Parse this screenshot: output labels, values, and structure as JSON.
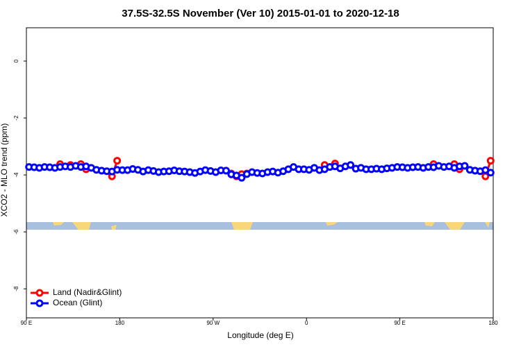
{
  "chart_data": {
    "type": "line",
    "title": "37.5S-32.5S November (Ver 10)   2015-01-01 to 2020-12-18",
    "x_label": "Longitude (deg E)",
    "y_label": "XCO2 - MLO trend (ppm)",
    "x": [
      92.5,
      97.5,
      102.5,
      107.5,
      112.5,
      117.5,
      122.5,
      127.5,
      132.5,
      137.5,
      142.5,
      147.5,
      152.5,
      157.5,
      162.5,
      167.5,
      172.5,
      177.5,
      182.5,
      187.5,
      192.5,
      197.5,
      202.5,
      207.5,
      212.5,
      217.5,
      222.5,
      227.5,
      232.5,
      237.5,
      242.5,
      247.5,
      252.5,
      257.5,
      262.5,
      267.5,
      272.5,
      277.5,
      282.5,
      287.5,
      292.5,
      297.5,
      302.5,
      307.5,
      312.5,
      317.5,
      322.5,
      327.5,
      332.5,
      337.5,
      342.5,
      347.5,
      352.5,
      357.5,
      362.5,
      367.5,
      372.5,
      377.5,
      382.5,
      387.5,
      392.5,
      397.5,
      402.5,
      407.5,
      412.5,
      417.5,
      422.5,
      427.5,
      432.5,
      437.5,
      442.5,
      447.5,
      452.5,
      457.5,
      462.5,
      467.5,
      472.5,
      477.5,
      482.5,
      487.5,
      492.5,
      497.5,
      502.5,
      507.5,
      512.5,
      517.5,
      522.5,
      527.5,
      532.5,
      537.5
    ],
    "xlim": [
      90,
      540
    ],
    "xticks": [
      {
        "value": 90,
        "label": "90 E"
      },
      180,
      {
        "value": 270,
        "label": "90 W"
      },
      {
        "value": 360,
        "label": "0"
      },
      {
        "value": 450,
        "label": "90 E"
      },
      {
        "value": 540,
        "label": "180"
      }
    ],
    "ylim": [
      -9.02,
      1.17
    ],
    "yticks": [
      0,
      -2,
      -4,
      -6,
      -8
    ],
    "legend": "bottom-left",
    "series": [
      {
        "name": "Land (Nadir&Glint)",
        "color": "#ff0000",
        "values": [
          null,
          null,
          null,
          null,
          null,
          null,
          -3.62,
          null,
          -3.65,
          null,
          -3.62,
          -3.8,
          null,
          null,
          null,
          null,
          -4.05,
          -3.5,
          null,
          null,
          null,
          null,
          null,
          null,
          null,
          null,
          null,
          null,
          null,
          null,
          null,
          null,
          null,
          null,
          null,
          null,
          null,
          null,
          null,
          -3.95,
          -4.05,
          -3.97,
          -3.95,
          null,
          null,
          null,
          null,
          null,
          null,
          null,
          null,
          null,
          null,
          null,
          null,
          null,
          null,
          -3.65,
          null,
          -3.6,
          null,
          null,
          null,
          null,
          null,
          null,
          null,
          null,
          null,
          null,
          null,
          null,
          null,
          null,
          null,
          null,
          null,
          null,
          -3.62,
          null,
          null,
          null,
          -3.62,
          -3.8,
          null,
          null,
          null,
          null,
          -4.05,
          -3.5
        ]
      },
      {
        "name": "Ocean (Glint)",
        "color": "#0000ff",
        "values": [
          -3.72,
          -3.73,
          -3.75,
          -3.72,
          -3.73,
          -3.75,
          -3.72,
          -3.7,
          -3.72,
          -3.68,
          -3.72,
          -3.7,
          -3.75,
          -3.82,
          -3.85,
          -3.87,
          -3.88,
          -3.82,
          -3.83,
          -3.83,
          -3.79,
          -3.82,
          -3.88,
          -3.83,
          -3.86,
          -3.9,
          -3.88,
          -3.87,
          -3.84,
          -3.87,
          -3.88,
          -3.9,
          -3.93,
          -3.88,
          -3.83,
          -3.86,
          -3.9,
          -3.84,
          -3.85,
          -3.98,
          -4.02,
          -4.1,
          -3.97,
          -3.9,
          -3.93,
          -3.95,
          -3.9,
          -3.88,
          -3.92,
          -3.87,
          -3.8,
          -3.72,
          -3.8,
          -3.8,
          -3.82,
          -3.75,
          -3.83,
          -3.8,
          -3.72,
          -3.7,
          -3.77,
          -3.7,
          -3.65,
          -3.78,
          -3.75,
          -3.8,
          -3.8,
          -3.78,
          -3.8,
          -3.77,
          -3.75,
          -3.72,
          -3.73,
          -3.75,
          -3.73,
          -3.72,
          -3.75,
          -3.72,
          -3.73,
          -3.68,
          -3.72,
          -3.7,
          -3.75,
          -3.7,
          -3.68,
          -3.82,
          -3.85,
          -3.87,
          -3.83,
          -3.92
        ]
      }
    ]
  }
}
